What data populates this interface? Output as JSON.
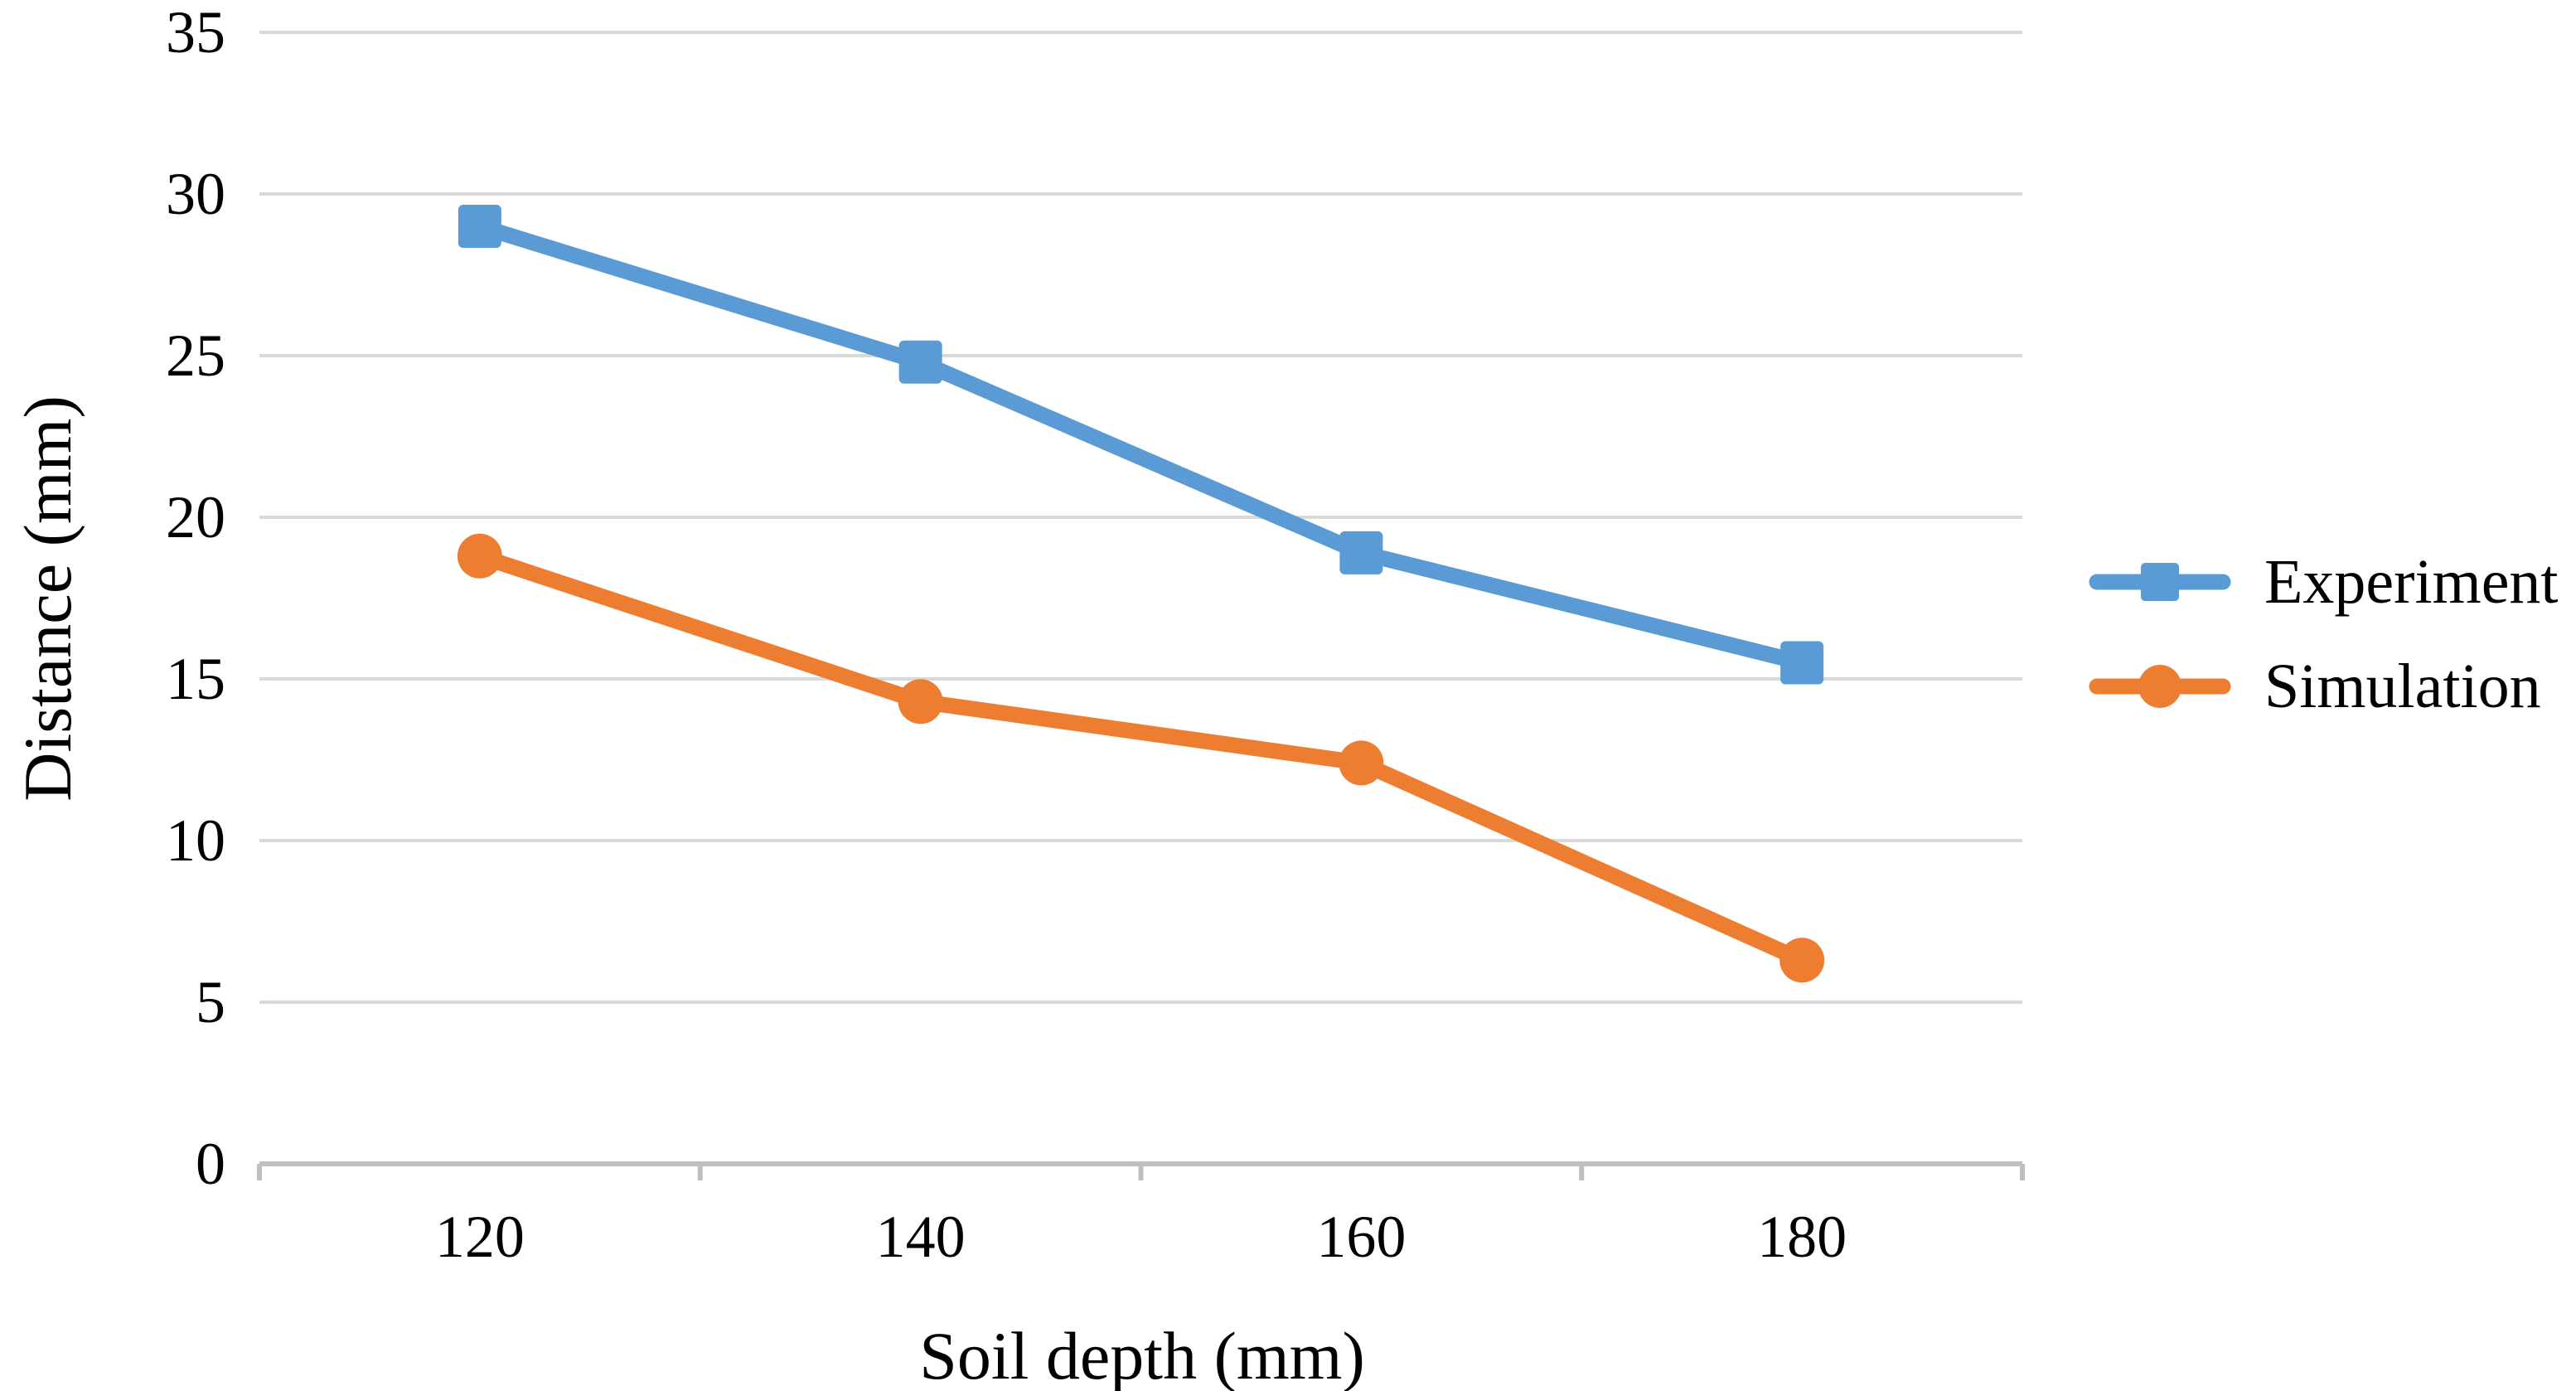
{
  "chart_data": {
    "type": "line",
    "title": "",
    "xlabel": "Soil depth (mm)",
    "ylabel": "Distance (mm)",
    "categories": [
      "120",
      "140",
      "160",
      "180"
    ],
    "series": [
      {
        "name": "Experiment",
        "marker": "square",
        "color": "#5B9BD5",
        "values": [
          29.0,
          24.8,
          18.9,
          15.5
        ]
      },
      {
        "name": "Simulation",
        "marker": "circle",
        "color": "#ED7D31",
        "values": [
          18.8,
          14.3,
          12.4,
          6.3
        ]
      }
    ],
    "y_axis": {
      "min": 0,
      "max": 35,
      "step": 5,
      "tick_labels": [
        "0",
        "5",
        "10",
        "15",
        "20",
        "25",
        "30",
        "35"
      ]
    },
    "x_tick_labels": [
      "120",
      "140",
      "160",
      "180"
    ],
    "grid": true,
    "legend_position": "right",
    "gridline_color": "#D9D9D9",
    "axis_color": "#BFBFBF",
    "text_color": "#000000",
    "background_color": "#FFFFFF"
  }
}
